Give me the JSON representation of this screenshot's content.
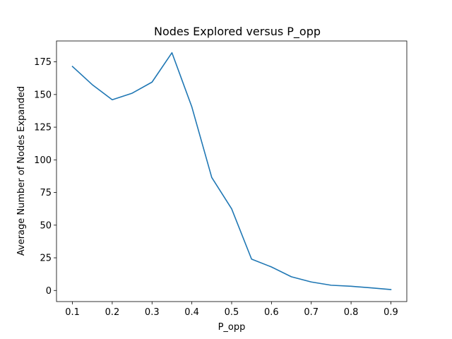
{
  "chart_data": {
    "type": "line",
    "title": "Nodes Explored versus P_opp",
    "xlabel": "P_opp",
    "ylabel": "Average Number of Nodes Expanded",
    "xlim": [
      0.06,
      0.94
    ],
    "ylim": [
      -8.5,
      191
    ],
    "xticks": [
      0.1,
      0.2,
      0.3,
      0.4,
      0.5,
      0.6,
      0.7,
      0.8,
      0.9
    ],
    "xtick_labels": [
      "0.1",
      "0.2",
      "0.3",
      "0.4",
      "0.5",
      "0.6",
      "0.7",
      "0.8",
      "0.9"
    ],
    "yticks": [
      0,
      25,
      50,
      75,
      100,
      125,
      150,
      175
    ],
    "ytick_labels": [
      "0",
      "25",
      "50",
      "75",
      "100",
      "125",
      "150",
      "175"
    ],
    "grid": false,
    "legend": "none",
    "series": [
      {
        "color": "#1f77b4",
        "x": [
          0.1,
          0.15,
          0.2,
          0.25,
          0.3,
          0.35,
          0.4,
          0.45,
          0.5,
          0.55,
          0.6,
          0.65,
          0.7,
          0.75,
          0.8,
          0.85,
          0.9
        ],
        "y": [
          171.5,
          157.5,
          146,
          151,
          159.5,
          182,
          140.5,
          86.5,
          62.5,
          24,
          18,
          10.5,
          6.5,
          4,
          3.2,
          2,
          0.7
        ]
      }
    ]
  }
}
